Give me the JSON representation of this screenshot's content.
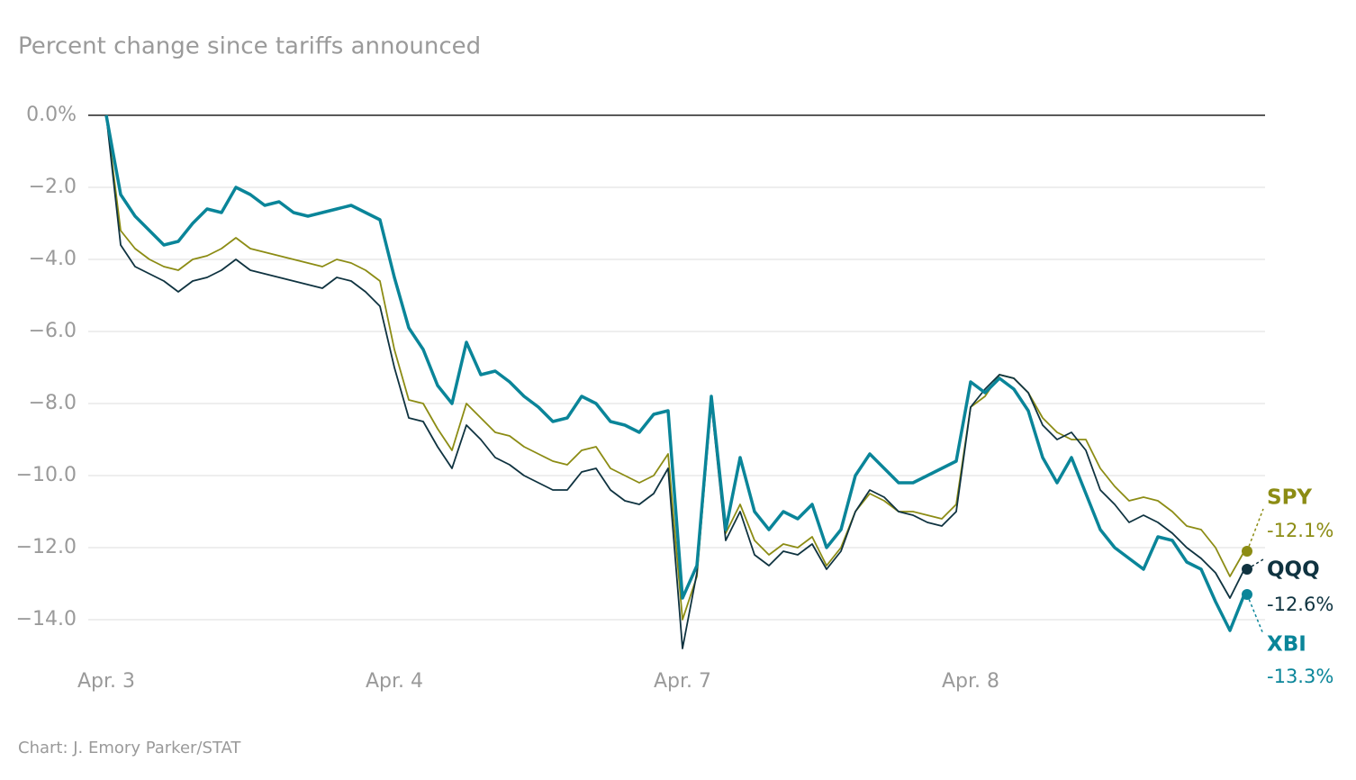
{
  "chart_data": {
    "type": "line",
    "title": "Percent change since tariffs announced",
    "source": "Chart: J. Emory Parker/STAT",
    "x": [
      0,
      1,
      2,
      3,
      4,
      5,
      6,
      7,
      8,
      9,
      10,
      11,
      12,
      13,
      14,
      15,
      16,
      17,
      18,
      19,
      20,
      21,
      22,
      23,
      24,
      25,
      26,
      27,
      28,
      29,
      30,
      31,
      32,
      33,
      34,
      35,
      36,
      37,
      38,
      39,
      40,
      41,
      42,
      43,
      44,
      45,
      46,
      47,
      48,
      49,
      50,
      51,
      52,
      53,
      54,
      55,
      56,
      57,
      58,
      59,
      60,
      61,
      62,
      63,
      64,
      65,
      66,
      67,
      68,
      69,
      70,
      71,
      72,
      73,
      74,
      75,
      76,
      77,
      78,
      79
    ],
    "xlim": [
      0,
      79
    ],
    "xticks": [
      {
        "value": 0,
        "label": "Apr. 3"
      },
      {
        "value": 20,
        "label": "Apr. 4"
      },
      {
        "value": 40,
        "label": "Apr. 7"
      },
      {
        "value": 60,
        "label": "Apr. 8"
      }
    ],
    "ylim": [
      -15.2,
      0.2
    ],
    "yticks": [
      {
        "value": 0,
        "label": "0.0%"
      },
      {
        "value": -2,
        "label": "−2.0"
      },
      {
        "value": -4,
        "label": "−4.0"
      },
      {
        "value": -6,
        "label": "−6.0"
      },
      {
        "value": -8,
        "label": "−8.0"
      },
      {
        "value": -10,
        "label": "−10.0"
      },
      {
        "value": -12,
        "label": "−12.0"
      },
      {
        "value": -14,
        "label": "−14.0"
      }
    ],
    "grid": true,
    "series": [
      {
        "name": "SPY",
        "color": "#8c8c14",
        "end_label": "-12.1%",
        "values": [
          0,
          -3.2,
          -3.7,
          -4.0,
          -4.2,
          -4.3,
          -4.0,
          -3.9,
          -3.7,
          -3.4,
          -3.7,
          -3.8,
          -3.9,
          -4.0,
          -4.1,
          -4.2,
          -4.0,
          -4.1,
          -4.3,
          -4.6,
          -6.5,
          -7.9,
          -8.0,
          -8.7,
          -9.3,
          -8.0,
          -8.4,
          -8.8,
          -8.9,
          -9.2,
          -9.4,
          -9.6,
          -9.7,
          -9.3,
          -9.2,
          -9.8,
          -10.0,
          -10.2,
          -10.0,
          -9.4,
          -14.0,
          -12.8,
          -7.9,
          -11.6,
          -10.8,
          -11.8,
          -12.2,
          -11.9,
          -12.0,
          -11.7,
          -12.5,
          -12.0,
          -11.0,
          -10.5,
          -10.7,
          -11.0,
          -11.0,
          -11.1,
          -11.2,
          -10.8,
          -8.1,
          -7.8,
          -7.2,
          -7.3,
          -7.7,
          -8.4,
          -8.8,
          -9.0,
          -9.0,
          -9.8,
          -10.3,
          -10.7,
          -10.6,
          -10.7,
          -11.0,
          -11.4,
          -11.5,
          -12.0,
          -12.8,
          -12.1
        ]
      },
      {
        "name": "QQQ",
        "color": "#0f3340",
        "end_label": "-12.6%",
        "values": [
          0,
          -3.6,
          -4.2,
          -4.4,
          -4.6,
          -4.9,
          -4.6,
          -4.5,
          -4.3,
          -4.0,
          -4.3,
          -4.4,
          -4.5,
          -4.6,
          -4.7,
          -4.8,
          -4.5,
          -4.6,
          -4.9,
          -5.3,
          -7.0,
          -8.4,
          -8.5,
          -9.2,
          -9.8,
          -8.6,
          -9.0,
          -9.5,
          -9.7,
          -10.0,
          -10.2,
          -10.4,
          -10.4,
          -9.9,
          -9.8,
          -10.4,
          -10.7,
          -10.8,
          -10.5,
          -9.8,
          -14.8,
          -12.7,
          -8.0,
          -11.8,
          -11.0,
          -12.2,
          -12.5,
          -12.1,
          -12.2,
          -11.9,
          -12.6,
          -12.1,
          -11.0,
          -10.4,
          -10.6,
          -11.0,
          -11.1,
          -11.3,
          -11.4,
          -11.0,
          -8.1,
          -7.6,
          -7.2,
          -7.3,
          -7.7,
          -8.6,
          -9.0,
          -8.8,
          -9.3,
          -10.4,
          -10.8,
          -11.3,
          -11.1,
          -11.3,
          -11.6,
          -12.0,
          -12.3,
          -12.7,
          -13.4,
          -12.6
        ]
      },
      {
        "name": "XBI",
        "color": "#0a8599",
        "end_label": "-13.3%",
        "values": [
          0,
          -2.2,
          -2.8,
          -3.2,
          -3.6,
          -3.5,
          -3.0,
          -2.6,
          -2.7,
          -2.0,
          -2.2,
          -2.5,
          -2.4,
          -2.7,
          -2.8,
          -2.7,
          -2.6,
          -2.5,
          -2.7,
          -2.9,
          -4.5,
          -5.9,
          -6.5,
          -7.5,
          -8.0,
          -6.3,
          -7.2,
          -7.1,
          -7.4,
          -7.8,
          -8.1,
          -8.5,
          -8.4,
          -7.8,
          -8.0,
          -8.5,
          -8.6,
          -8.8,
          -8.3,
          -8.2,
          -13.4,
          -12.5,
          -7.8,
          -11.5,
          -9.5,
          -11.0,
          -11.5,
          -11.0,
          -11.2,
          -10.8,
          -12.0,
          -11.5,
          -10.0,
          -9.4,
          -9.8,
          -10.2,
          -10.2,
          -10.0,
          -9.8,
          -9.6,
          -7.4,
          -7.7,
          -7.3,
          -7.6,
          -8.2,
          -9.5,
          -10.2,
          -9.5,
          -10.5,
          -11.5,
          -12.0,
          -12.3,
          -12.6,
          -11.7,
          -11.8,
          -12.4,
          -12.6,
          -13.5,
          -14.3,
          -13.3
        ]
      }
    ]
  }
}
